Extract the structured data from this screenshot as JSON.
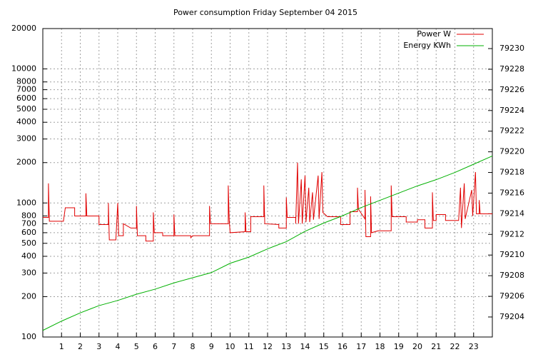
{
  "chart_data": {
    "type": "line",
    "title": "Power consumption Friday September 04 2015",
    "xlim": [
      0,
      24
    ],
    "xticks": [
      1,
      2,
      3,
      4,
      5,
      6,
      7,
      8,
      9,
      10,
      11,
      12,
      13,
      14,
      15,
      16,
      17,
      18,
      19,
      20,
      21,
      22,
      23
    ],
    "ylim": [
      100,
      20000
    ],
    "ylog": true,
    "yticks": [
      100,
      200,
      300,
      400,
      500,
      600,
      700,
      800,
      1000,
      2000,
      3000,
      4000,
      5000,
      6000,
      7000,
      8000,
      10000,
      20000
    ],
    "y2lim": [
      79202.06,
      79231.94
    ],
    "y2ticks": [
      79204,
      79206,
      79208,
      79210,
      79212,
      79214,
      79216,
      79218,
      79220,
      79222,
      79224,
      79226,
      79228,
      79230
    ],
    "grid": true,
    "legend": "top-right",
    "series": [
      {
        "name": "Power W",
        "color": "#e00000",
        "x": [
          0,
          0.3,
          0.3,
          0.35,
          1.1,
          1.2,
          1.7,
          1.7,
          2.3,
          2.3,
          2.35,
          3.0,
          3.0,
          3.5,
          3.5,
          3.55,
          3.9,
          4.0,
          4.05,
          4.3,
          4.3,
          4.7,
          5.0,
          5.0,
          5.05,
          5.5,
          5.5,
          5.9,
          5.9,
          5.95,
          6.4,
          6.4,
          7.0,
          7.0,
          7.05,
          7.9,
          7.9,
          8.0,
          8.9,
          8.9,
          8.95,
          9.9,
          9.9,
          9.95,
          10.0,
          10.8,
          10.8,
          10.85,
          11.1,
          11.1,
          11.8,
          11.8,
          11.85,
          12.6,
          12.6,
          13.0,
          13.0,
          13.05,
          13.5,
          13.5,
          13.6,
          13.65,
          13.8,
          13.85,
          14.0,
          14.05,
          14.2,
          14.25,
          14.4,
          14.45,
          14.7,
          14.75,
          14.9,
          14.95,
          15.2,
          15.9,
          15.9,
          16.4,
          16.4,
          16.8,
          16.8,
          16.85,
          17.2,
          17.2,
          17.25,
          17.5,
          17.5,
          17.55,
          17.9,
          18.6,
          18.6,
          18.65,
          19.4,
          19.4,
          20.0,
          20.0,
          20.4,
          20.4,
          20.8,
          20.8,
          20.85,
          21.0,
          21.0,
          21.5,
          21.5,
          22.2,
          22.3,
          22.35,
          22.5,
          22.55,
          22.9,
          22.95,
          23.1,
          23.15,
          23.3,
          23.3,
          23.35,
          24
        ],
        "values": [
          780,
          780,
          1400,
          730,
          730,
          920,
          920,
          800,
          800,
          1180,
          800,
          800,
          690,
          690,
          1000,
          530,
          530,
          1000,
          570,
          570,
          700,
          650,
          650,
          950,
          570,
          570,
          520,
          520,
          850,
          600,
          600,
          570,
          570,
          820,
          570,
          570,
          550,
          570,
          570,
          950,
          700,
          700,
          1350,
          760,
          600,
          610,
          850,
          610,
          610,
          790,
          790,
          1350,
          700,
          690,
          650,
          650,
          1100,
          780,
          780,
          700,
          2000,
          700,
          1500,
          700,
          1600,
          720,
          1300,
          720,
          1200,
          750,
          1600,
          760,
          1700,
          850,
          790,
          790,
          690,
          690,
          860,
          860,
          1300,
          900,
          760,
          1250,
          560,
          560,
          1120,
          600,
          620,
          620,
          1350,
          790,
          790,
          720,
          720,
          750,
          750,
          650,
          650,
          1200,
          740,
          740,
          820,
          820,
          740,
          740,
          1300,
          650,
          1400,
          760,
          1250,
          800,
          1700,
          830,
          830,
          1050,
          830,
          830
        ]
      },
      {
        "name": "Energy KWh",
        "color": "#00b000",
        "axis": "y2",
        "x": [
          0,
          1,
          2,
          3,
          4,
          5,
          6,
          7,
          8,
          9,
          10,
          11,
          12,
          13,
          14,
          15,
          16,
          17,
          18,
          19,
          20,
          21,
          22,
          23,
          24
        ],
        "values": [
          79202.7,
          79203.6,
          79204.4,
          79205.1,
          79205.6,
          79206.2,
          79206.7,
          79207.3,
          79207.8,
          79208.3,
          79209.2,
          79209.8,
          79210.6,
          79211.3,
          79212.3,
          79213.1,
          79213.8,
          79214.6,
          79215.3,
          79216,
          79216.7,
          79217.3,
          79218,
          79218.8,
          79219.6
        ]
      }
    ]
  }
}
